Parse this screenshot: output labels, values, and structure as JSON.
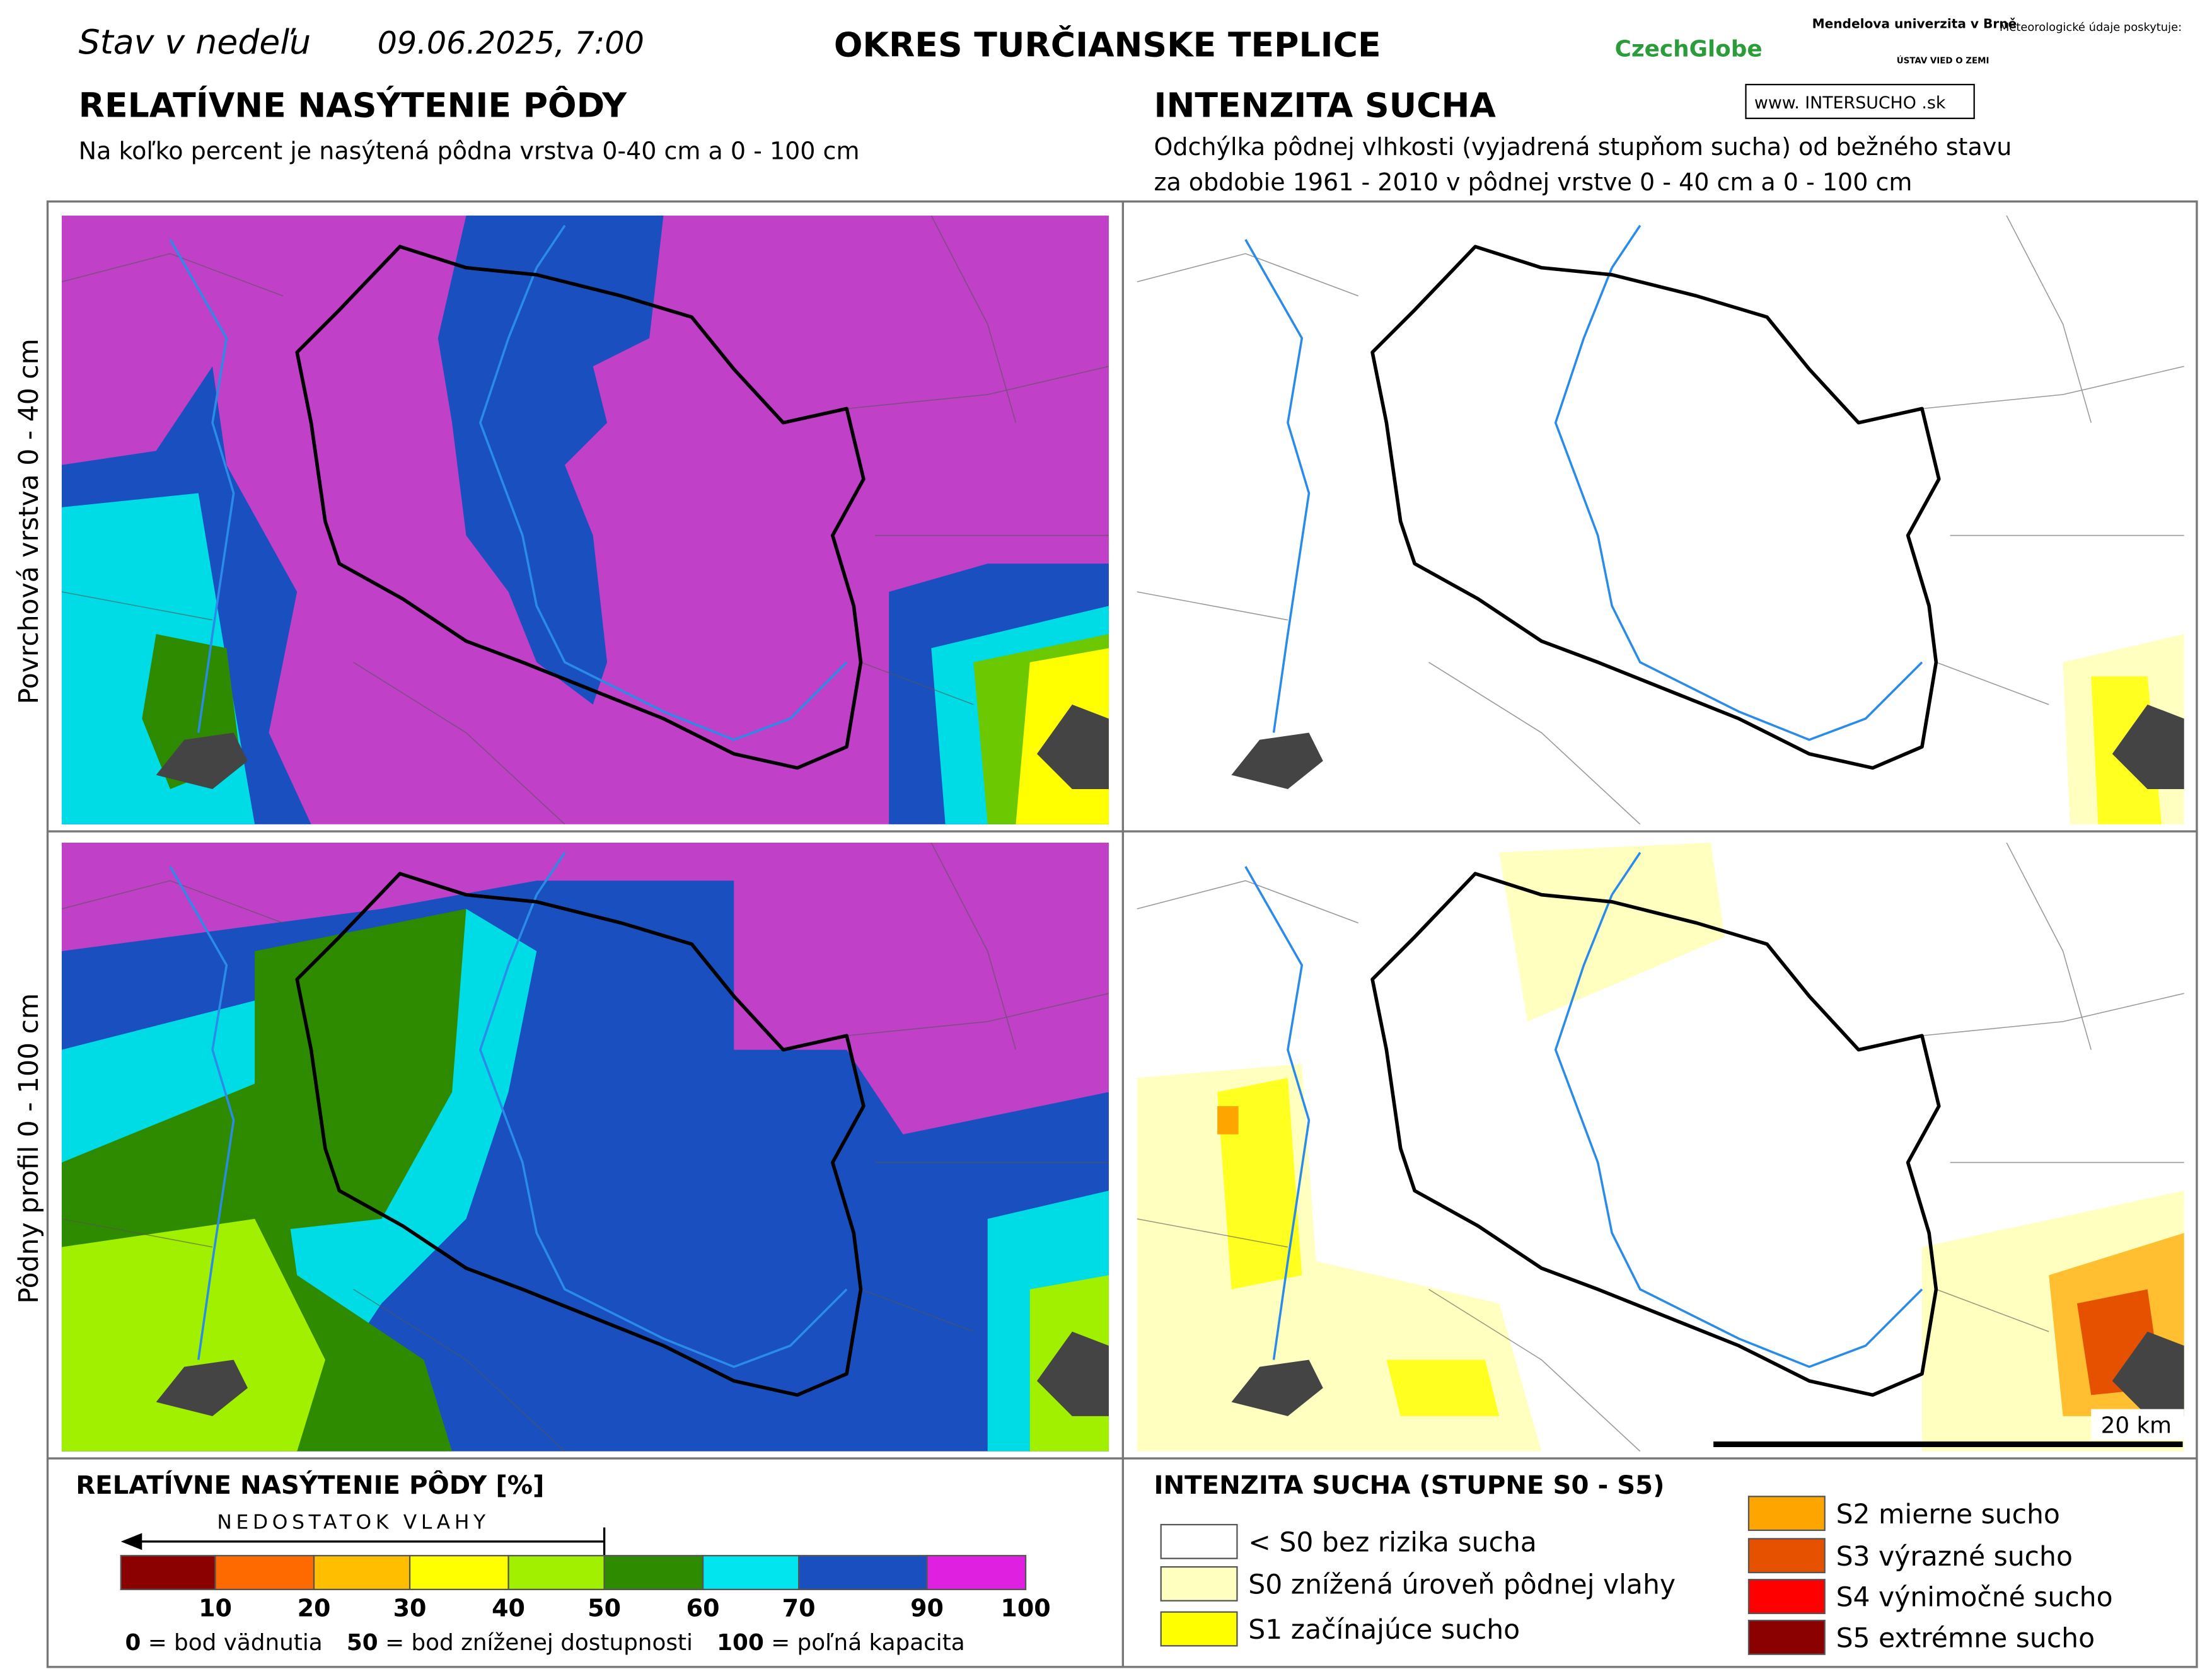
{
  "header": {
    "status": "Stav v nedeľu",
    "datetime": "09.06.2025, 7:00",
    "district": "OKRES  TURČIANSKE TEPLICE",
    "logos": [
      "CzechGlobe",
      "Mendelova univerzita v Brně",
      "ÚSTAV VIED O ZEMI",
      "Meteorologické údaje poskytuje:",
      "www. INTERSUCHO .sk"
    ]
  },
  "left": {
    "title": "RELATÍVNE NASÝTENIE PÔDY",
    "subtitle": "Na koľko percent je nasýtená pôdna vrstva 0-40 cm a 0 - 100 cm"
  },
  "right": {
    "title": "INTENZITA SUCHA",
    "subtitle": [
      "Odchýlka pôdnej vlhkosti (vyjadrená stupňom sucha) od bežného stavu",
      "za obdobie 1961 - 2010 v pôdnej vrstve 0 - 40 cm a 0 - 100 cm"
    ]
  },
  "rows": [
    "Povrchová vrstva 0 - 40 cm",
    "Pôdny profil 0 - 100 cm"
  ],
  "scale_bar": "20 km",
  "saturation_legend": {
    "title": "RELATÍVNE NASÝTENIE PÔDY [%]",
    "arrow": "NEDOSTATOK VLAHY",
    "colors": [
      "#8b0000",
      "#ff6a00",
      "#ffbf00",
      "#ffff00",
      "#a0f000",
      "#2e8b00",
      "#00e5ee",
      "#1a4fbf",
      "#e020e0"
    ],
    "ticks": [
      10,
      20,
      30,
      40,
      50,
      60,
      70,
      90,
      100
    ],
    "notes": [
      {
        "value": "0",
        "text": " = bod vädnutia"
      },
      {
        "value": "50",
        "text": " = bod zníženej dostupnosti"
      },
      {
        "value": "100",
        "text": " = poľná kapacita"
      }
    ]
  },
  "drought_legend": {
    "title": "INTENZITA SUCHA (STUPNE S0 - S5)",
    "classes": [
      {
        "label": "< S0 bez rizika sucha",
        "color": "#ffffff"
      },
      {
        "label": "S0 znížená úroveň pôdnej vlahy",
        "color": "#ffffc0"
      },
      {
        "label": "S1 začínajúce sucho",
        "color": "#ffff00"
      },
      {
        "label": "S2 mierne sucho",
        "color": "#ffa500"
      },
      {
        "label": "S3 výrazné sucho",
        "color": "#e65100"
      },
      {
        "label": "S4 výnimočné sucho",
        "color": "#ff0000"
      },
      {
        "label": "S5 extrémne sucho",
        "color": "#8b0000"
      }
    ]
  }
}
